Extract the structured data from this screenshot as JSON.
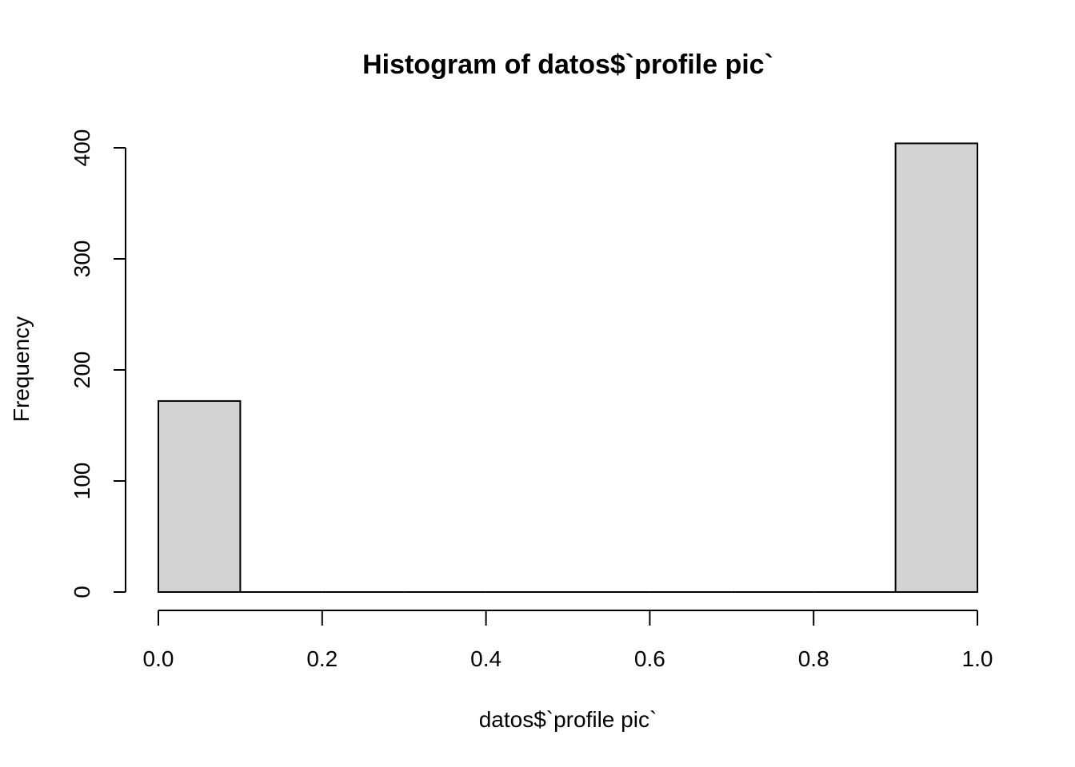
{
  "chart_data": {
    "type": "bar",
    "title": "Histogram of datos$`profile pic`",
    "xlabel": "datos$`profile pic`",
    "ylabel": "Frequency",
    "bins": [
      {
        "x0": 0.0,
        "x1": 0.1,
        "count": 172
      },
      {
        "x0": 0.1,
        "x1": 0.2,
        "count": 0
      },
      {
        "x0": 0.2,
        "x1": 0.3,
        "count": 0
      },
      {
        "x0": 0.3,
        "x1": 0.4,
        "count": 0
      },
      {
        "x0": 0.4,
        "x1": 0.5,
        "count": 0
      },
      {
        "x0": 0.5,
        "x1": 0.6,
        "count": 0
      },
      {
        "x0": 0.6,
        "x1": 0.7,
        "count": 0
      },
      {
        "x0": 0.7,
        "x1": 0.8,
        "count": 0
      },
      {
        "x0": 0.8,
        "x1": 0.9,
        "count": 0
      },
      {
        "x0": 0.9,
        "x1": 1.0,
        "count": 404
      }
    ],
    "xlim": [
      0.0,
      1.0
    ],
    "ylim": [
      0,
      404
    ],
    "x_ticks": [
      0.0,
      0.2,
      0.4,
      0.6,
      0.8,
      1.0
    ],
    "x_tick_labels": [
      "0.0",
      "0.2",
      "0.4",
      "0.6",
      "0.8",
      "1.0"
    ],
    "y_ticks": [
      0,
      100,
      200,
      300,
      400
    ],
    "y_tick_labels": [
      "0",
      "100",
      "200",
      "300",
      "400"
    ],
    "bar_color": "#d3d3d3",
    "grid": false
  }
}
